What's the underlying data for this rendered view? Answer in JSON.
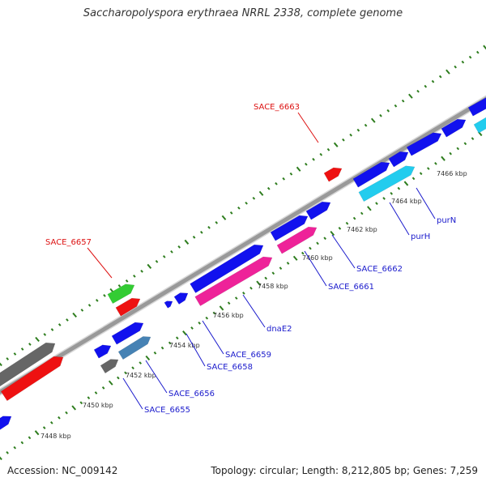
{
  "title": "Saccharopolyspora erythraea NRRL 2338, complete genome",
  "accession_text": "Accession: NC_009142",
  "summary_text": "Topology: circular; Length: 8,212,805 bp; Genes: 7,259",
  "colors": {
    "backbone": "#999999",
    "ticks": "#2e7d1e",
    "label_blue": "#1a1acc",
    "label_red": "#dd1111",
    "blue": "#1111ee",
    "red": "#ee1111",
    "green": "#33cc33",
    "gray": "#666666",
    "steel": "#4682b4",
    "pink": "#ee2299",
    "cyan": "#22ccee"
  },
  "ticks": [
    {
      "label": "7448 kbp"
    },
    {
      "label": "7450 kbp"
    },
    {
      "label": "7452 kbp"
    },
    {
      "label": "7454 kbp"
    },
    {
      "label": "7456 kbp"
    },
    {
      "label": "7458 kbp"
    },
    {
      "label": "7460 kbp"
    },
    {
      "label": "7462 kbp"
    },
    {
      "label": "7464 kbp"
    },
    {
      "label": "7466 kbp"
    }
  ],
  "gene_labels": [
    {
      "text": "SACE_6663",
      "color": "red"
    },
    {
      "text": "SACE_6657",
      "color": "red"
    },
    {
      "text": "SACE_6662",
      "color": "blue"
    },
    {
      "text": "SACE_6661",
      "color": "blue"
    },
    {
      "text": "purN",
      "color": "blue"
    },
    {
      "text": "purH",
      "color": "blue"
    },
    {
      "text": "dnaE2",
      "color": "blue"
    },
    {
      "text": "SACE_6659",
      "color": "blue"
    },
    {
      "text": "SACE_6658",
      "color": "blue"
    },
    {
      "text": "SACE_6656",
      "color": "blue"
    },
    {
      "text": "SACE_6655",
      "color": "blue"
    }
  ]
}
